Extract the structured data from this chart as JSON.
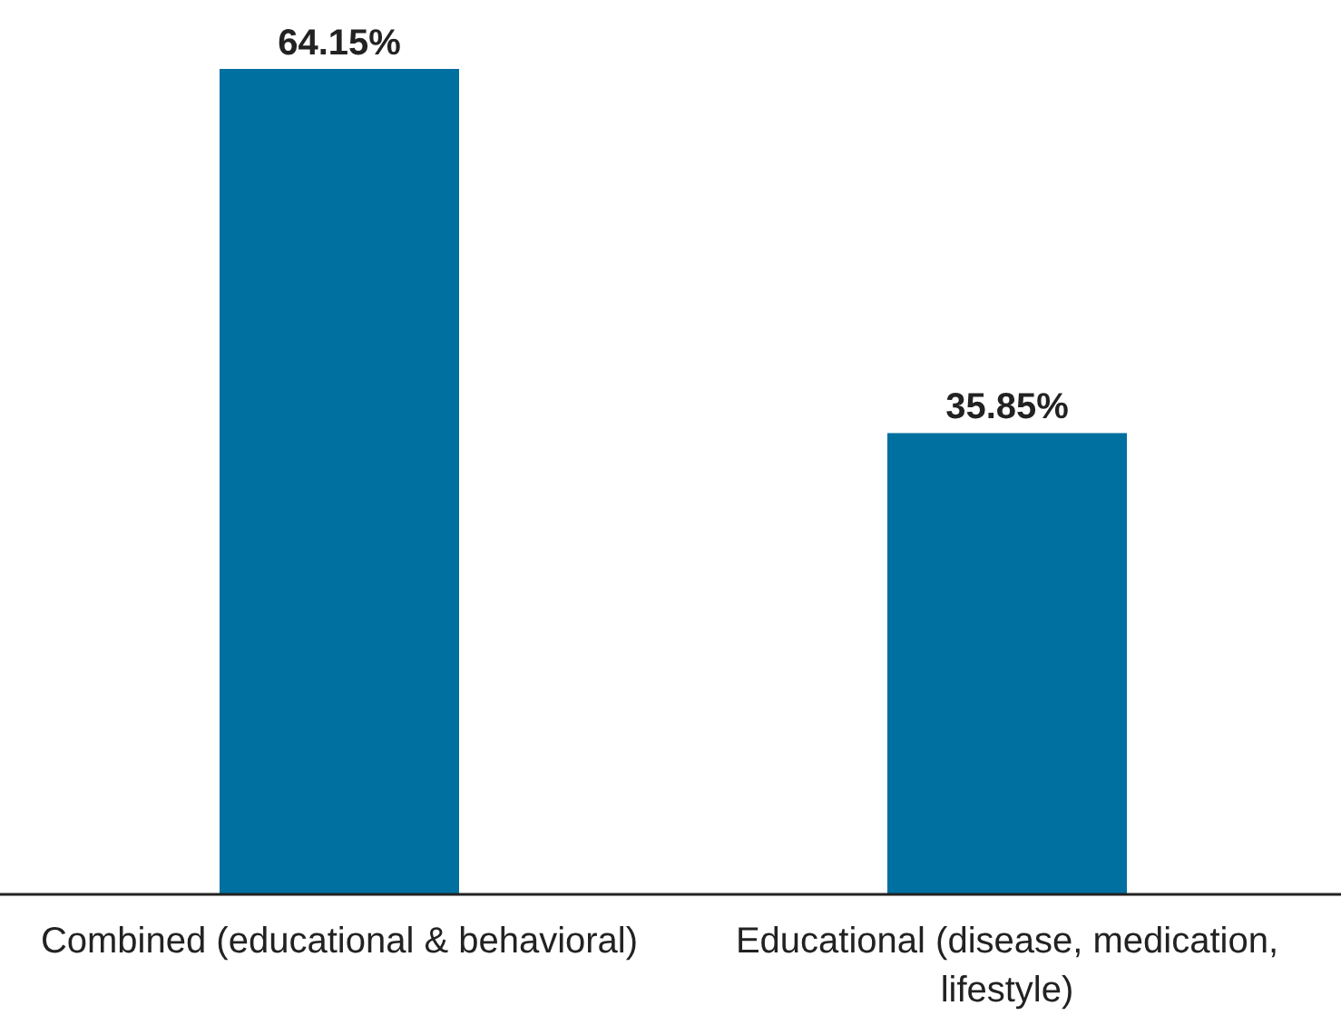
{
  "chart_data": {
    "type": "bar",
    "categories": [
      "Combined (educational & behavioral)",
      "Educational (disease, medication, lifestyle)"
    ],
    "values": [
      64.15,
      35.85
    ],
    "color": "#0070a0",
    "value_labels": [
      "64.15%",
      "35.85%"
    ]
  }
}
